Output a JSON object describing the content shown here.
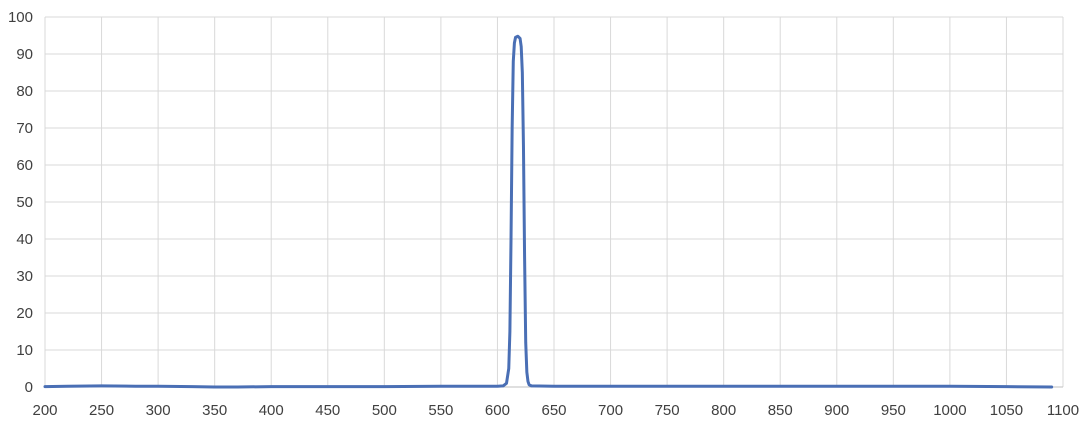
{
  "chart_data": {
    "type": "line",
    "title": "",
    "xlabel": "",
    "ylabel": "",
    "xlim": [
      200,
      1100
    ],
    "ylim": [
      0,
      100
    ],
    "x_ticks": [
      "200",
      "250",
      "300",
      "350",
      "400",
      "450",
      "500",
      "550",
      "600",
      "650",
      "700",
      "750",
      "800",
      "850",
      "900",
      "950",
      "1000",
      "1050",
      "1100"
    ],
    "y_ticks": [
      "0",
      "10",
      "20",
      "30",
      "40",
      "50",
      "60",
      "70",
      "80",
      "90",
      "100"
    ],
    "grid": true,
    "legend": "none",
    "series": [
      {
        "color": "#4a6fb5",
        "points": [
          [
            200,
            0.1
          ],
          [
            220,
            0.2
          ],
          [
            250,
            0.3
          ],
          [
            280,
            0.2
          ],
          [
            300,
            0.2
          ],
          [
            330,
            0.1
          ],
          [
            350,
            0.0
          ],
          [
            370,
            0.0
          ],
          [
            400,
            0.1
          ],
          [
            450,
            0.1
          ],
          [
            500,
            0.1
          ],
          [
            550,
            0.2
          ],
          [
            600,
            0.2
          ],
          [
            605,
            0.3
          ],
          [
            608,
            1.0
          ],
          [
            610,
            5.0
          ],
          [
            611,
            15.0
          ],
          [
            612,
            40.0
          ],
          [
            613,
            70.0
          ],
          [
            614,
            88.0
          ],
          [
            615,
            93.0
          ],
          [
            616,
            94.5
          ],
          [
            618,
            94.8
          ],
          [
            620,
            94.2
          ],
          [
            621,
            92.0
          ],
          [
            622,
            85.0
          ],
          [
            623,
            65.0
          ],
          [
            624,
            35.0
          ],
          [
            625,
            12.0
          ],
          [
            626,
            4.0
          ],
          [
            627,
            1.5
          ],
          [
            628,
            0.6
          ],
          [
            630,
            0.3
          ],
          [
            650,
            0.2
          ],
          [
            700,
            0.2
          ],
          [
            750,
            0.2
          ],
          [
            800,
            0.2
          ],
          [
            850,
            0.2
          ],
          [
            900,
            0.2
          ],
          [
            950,
            0.2
          ],
          [
            1000,
            0.2
          ],
          [
            1050,
            0.1
          ],
          [
            1090,
            0.0
          ]
        ]
      }
    ]
  }
}
